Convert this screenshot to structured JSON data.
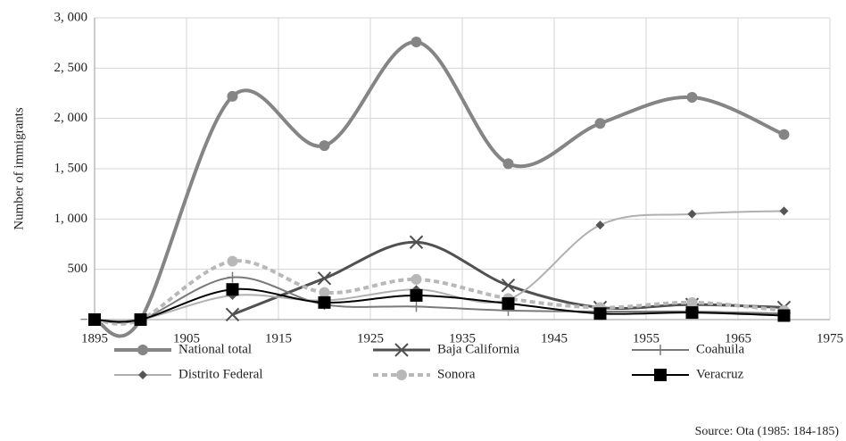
{
  "chart_data": {
    "type": "line",
    "y_label": "Number of immigrants",
    "source": "Source: Ota (1985: 184-185)",
    "x": [
      1895,
      1900,
      1910,
      1920,
      1930,
      1940,
      1950,
      1960,
      1970
    ],
    "xlim": [
      1895,
      1975
    ],
    "xticks": [
      1895,
      1905,
      1915,
      1925,
      1935,
      1945,
      1955,
      1965,
      1975
    ],
    "ylim": [
      0,
      3000
    ],
    "yticks": [
      {
        "value": 0,
        "label": "–"
      },
      500,
      {
        "value": 1000,
        "label": "1, 000"
      },
      {
        "value": 1500,
        "label": "1, 500"
      },
      {
        "value": 2000,
        "label": "2, 000"
      },
      {
        "value": 2500,
        "label": "2, 500"
      },
      {
        "value": 3000,
        "label": "3, 000"
      }
    ],
    "grid": true,
    "series": [
      {
        "name": "National total",
        "color": "#858585",
        "marker": "circle",
        "width": 4,
        "values": [
          0,
          0,
          2220,
          1730,
          2760,
          1550,
          1950,
          2210,
          1840
        ]
      },
      {
        "name": "Baja California",
        "color": "#505050",
        "marker": "x",
        "width": 3,
        "values": [
          null,
          null,
          50,
          410,
          770,
          340,
          120,
          150,
          120
        ]
      },
      {
        "name": "Coahuila",
        "color": "#7a7a7a",
        "marker": "plus",
        "width": 2,
        "values": [
          0,
          0,
          420,
          150,
          130,
          90,
          80,
          80,
          60
        ]
      },
      {
        "name": "Distrito Federal",
        "color": "#b0b0b0",
        "marker": "diamond",
        "width": 2,
        "values": [
          0,
          0,
          240,
          190,
          300,
          200,
          940,
          1050,
          1080
        ]
      },
      {
        "name": "Sonora",
        "color": "#b8b8b8",
        "marker": "circle",
        "width": 4,
        "dash": true,
        "values": [
          0,
          0,
          580,
          270,
          400,
          210,
          120,
          170,
          90
        ]
      },
      {
        "name": "Veracruz",
        "color": "#000000",
        "marker": "square",
        "width": 2,
        "values": [
          0,
          0,
          300,
          170,
          240,
          160,
          60,
          70,
          40
        ]
      }
    ]
  }
}
